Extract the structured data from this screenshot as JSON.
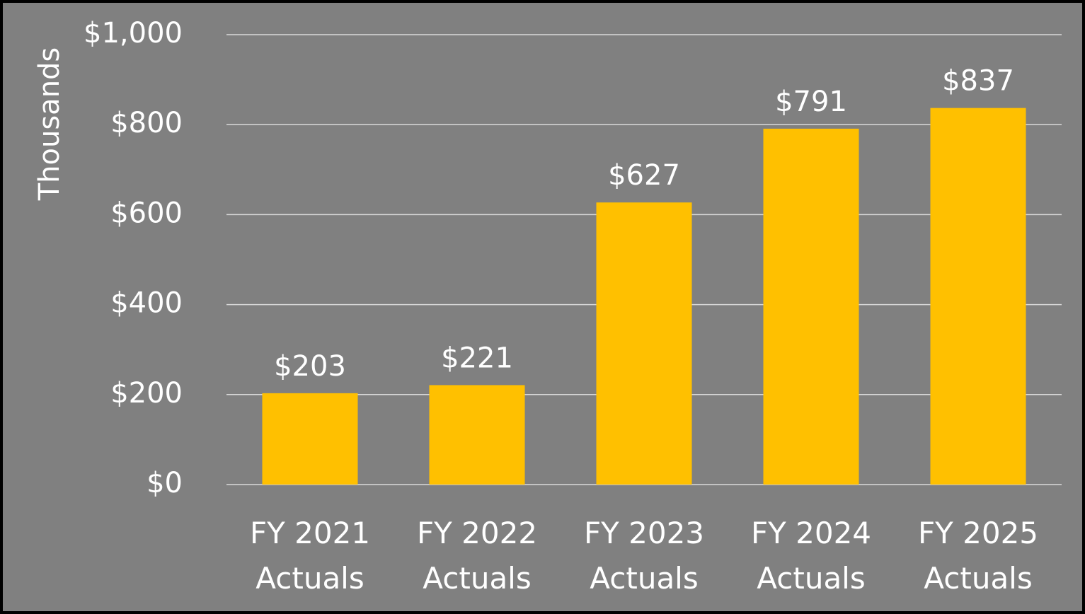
{
  "chart_data": {
    "type": "bar",
    "y_axis_label": "Thousands",
    "categories": [
      "FY 2021 Actuals",
      "FY 2022 Actuals",
      "FY 2023 Actuals",
      "FY 2024 Actuals",
      "FY 2025 Actuals"
    ],
    "values": [
      203,
      221,
      627,
      791,
      837
    ],
    "value_labels": [
      "$203",
      "$221",
      "$627",
      "$791",
      "$837"
    ],
    "color": "#ffc000",
    "ylim": [
      0,
      1000
    ],
    "yticks": [
      {
        "value": 0,
        "label": "$0"
      },
      {
        "value": 200,
        "label": "$200"
      },
      {
        "value": 400,
        "label": "$400"
      },
      {
        "value": 600,
        "label": "$600"
      },
      {
        "value": 800,
        "label": "$800"
      },
      {
        "value": 1000,
        "label": "$1,000"
      }
    ],
    "grid": true
  }
}
